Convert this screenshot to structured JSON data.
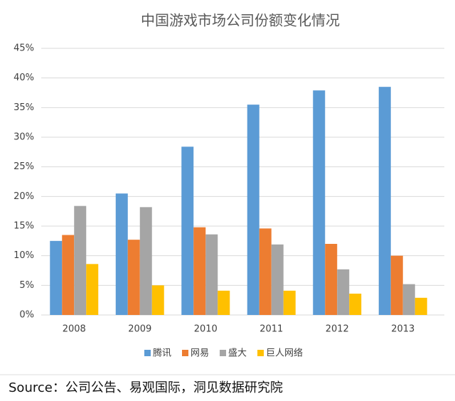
{
  "chart_data": {
    "type": "bar",
    "title": "中国游戏市场公司份额变化情况",
    "categories": [
      "2008",
      "2009",
      "2010",
      "2011",
      "2012",
      "2013"
    ],
    "series": [
      {
        "name": "腾讯",
        "color": "#5b9bd5",
        "values": [
          12.5,
          20.5,
          28.4,
          35.5,
          37.9,
          38.5
        ]
      },
      {
        "name": "网易",
        "color": "#ed7d31",
        "values": [
          13.5,
          12.7,
          14.8,
          14.6,
          12.0,
          10.0
        ]
      },
      {
        "name": "盛大",
        "color": "#a5a5a5",
        "values": [
          18.4,
          18.2,
          13.6,
          11.9,
          7.7,
          5.2
        ]
      },
      {
        "name": "巨人网络",
        "color": "#ffc000",
        "values": [
          8.6,
          5.0,
          4.1,
          4.1,
          3.6,
          2.9
        ]
      }
    ],
    "ylim": [
      0,
      45
    ],
    "yticks": [
      {
        "value": 0,
        "label": "0%"
      },
      {
        "value": 5,
        "label": "5%"
      },
      {
        "value": 10,
        "label": "10%"
      },
      {
        "value": 15,
        "label": "15%"
      },
      {
        "value": 20,
        "label": "20%"
      },
      {
        "value": 25,
        "label": "25%"
      },
      {
        "value": 30,
        "label": "30%"
      },
      {
        "value": 35,
        "label": "35%"
      },
      {
        "value": 40,
        "label": "40%"
      },
      {
        "value": 45,
        "label": "45%"
      }
    ],
    "grid": true,
    "legend": "bottom"
  },
  "source": "Source：公司公告、易观国际，洞见数据研究院"
}
